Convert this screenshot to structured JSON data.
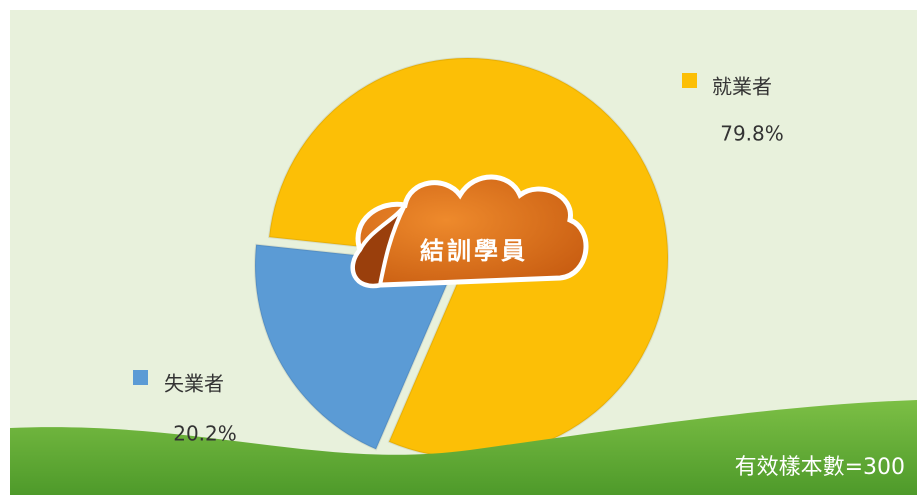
{
  "chart_data": {
    "type": "pie",
    "title": "結訓學員",
    "categories": [
      "就業者",
      "失業者"
    ],
    "values": [
      79.8,
      20.2
    ],
    "value_labels": [
      "79.8%",
      "20.2%"
    ],
    "colors": [
      "#fcbf06",
      "#5b9bd5"
    ],
    "note": "有效樣本數=300"
  }
}
